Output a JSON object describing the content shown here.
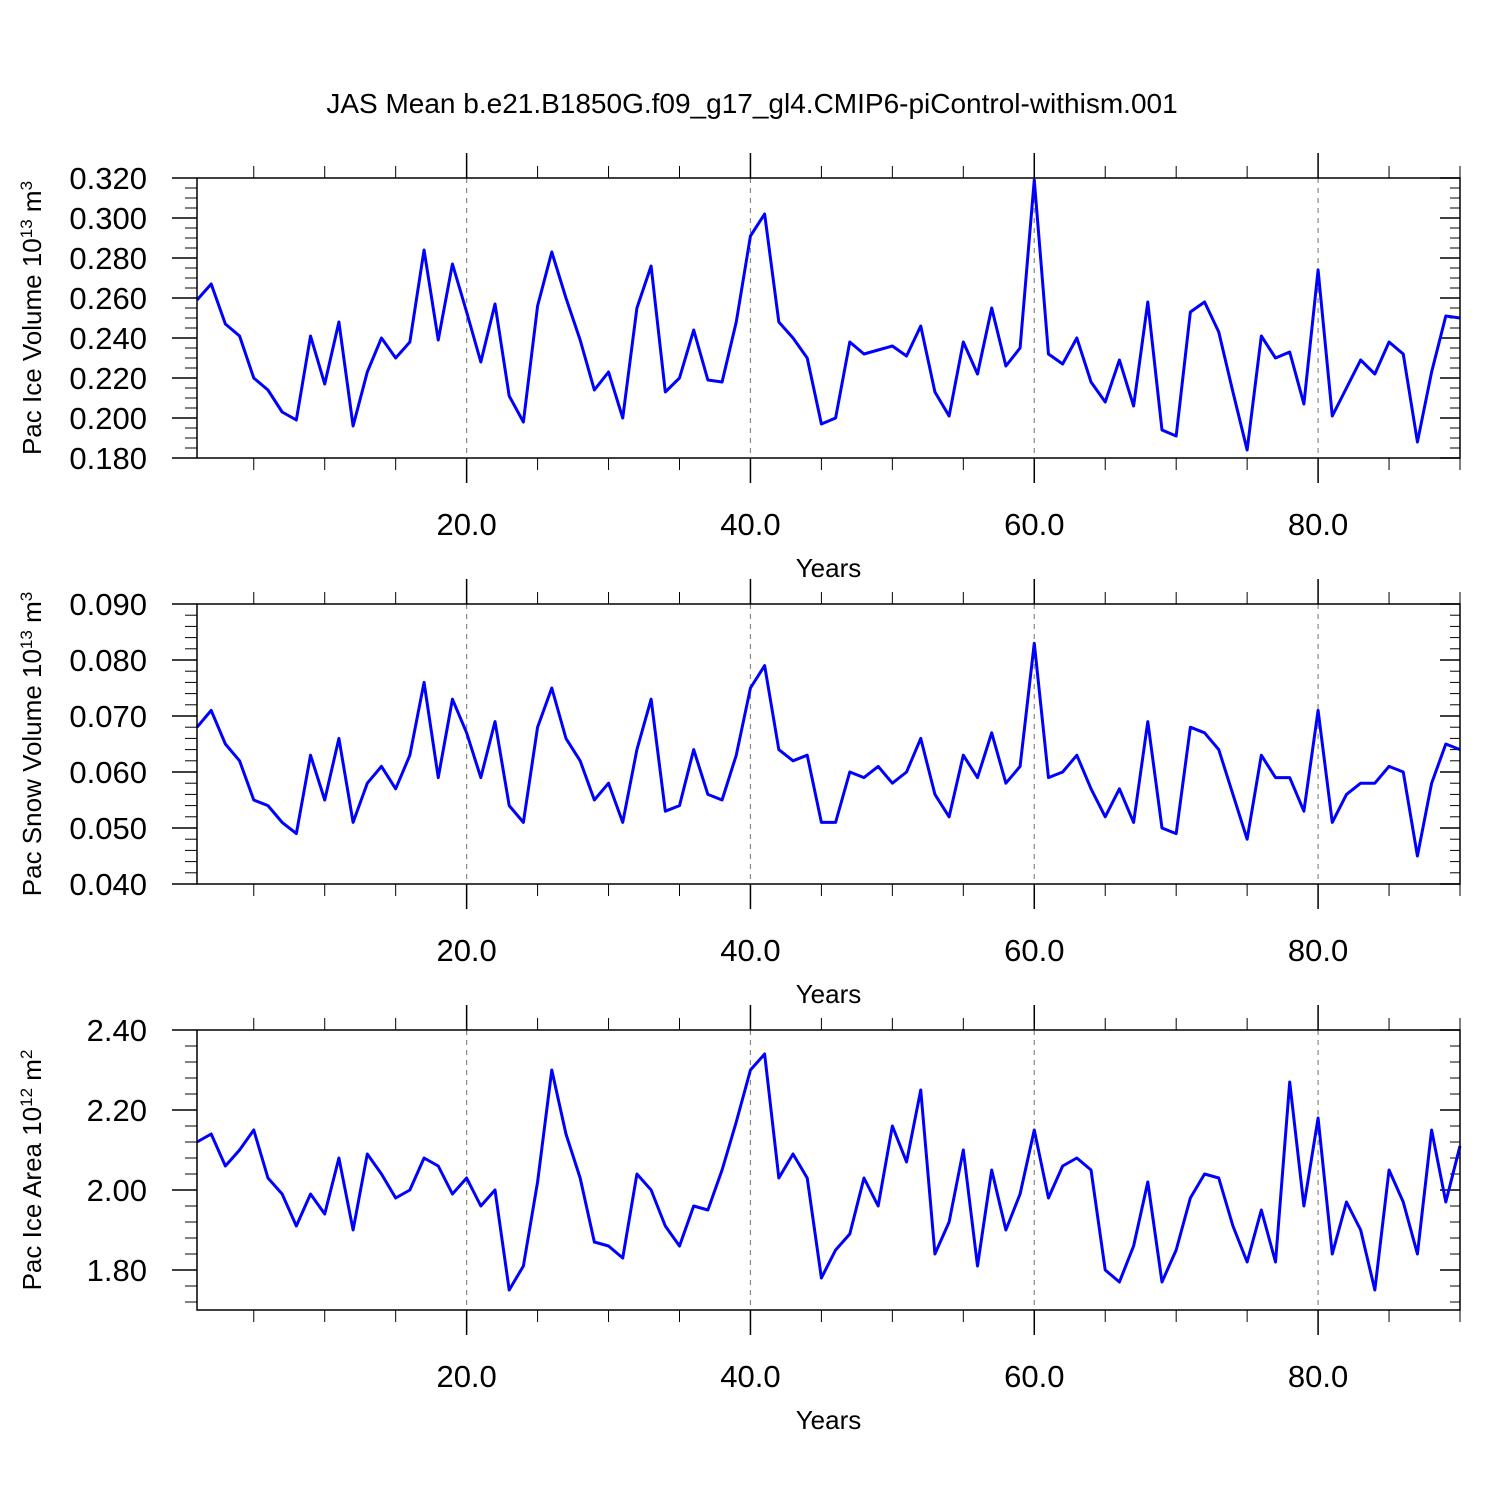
{
  "title": "JAS Mean b.e21.B1850G.f09_g17_gl4.CMIP6-piControl-withism.001",
  "chart_data": [
    {
      "type": "line",
      "ylabel": [
        {
          "text": "Pac Ice Volume 10"
        },
        {
          "text": "13",
          "sup": true
        },
        {
          "text": " m"
        },
        {
          "text": "3",
          "sup": true
        }
      ],
      "xlabel": "Years",
      "x": [
        1,
        2,
        3,
        4,
        5,
        6,
        7,
        8,
        9,
        10,
        11,
        12,
        13,
        14,
        15,
        16,
        17,
        18,
        19,
        20,
        21,
        22,
        23,
        24,
        25,
        26,
        27,
        28,
        29,
        30,
        31,
        32,
        33,
        34,
        35,
        36,
        37,
        38,
        39,
        40,
        41,
        42,
        43,
        44,
        45,
        46,
        47,
        48,
        49,
        50,
        51,
        52,
        53,
        54,
        55,
        56,
        57,
        58,
        59,
        60,
        61,
        62,
        63,
        64,
        65,
        66,
        67,
        68,
        69,
        70,
        71,
        72,
        73,
        74,
        75,
        76,
        77,
        78,
        79,
        80,
        81,
        82,
        83,
        84,
        85,
        86,
        87,
        88,
        89,
        90
      ],
      "series": [
        {
          "color": "#0000ff",
          "values": [
            0.259,
            0.267,
            0.247,
            0.241,
            0.22,
            0.214,
            0.203,
            0.199,
            0.241,
            0.217,
            0.248,
            0.196,
            0.223,
            0.24,
            0.23,
            0.238,
            0.284,
            0.239,
            0.277,
            0.253,
            0.228,
            0.257,
            0.211,
            0.198,
            0.256,
            0.283,
            0.26,
            0.239,
            0.214,
            0.223,
            0.2,
            0.255,
            0.276,
            0.213,
            0.22,
            0.244,
            0.219,
            0.218,
            0.248,
            0.291,
            0.302,
            0.248,
            0.24,
            0.23,
            0.197,
            0.2,
            0.238,
            0.232,
            0.234,
            0.236,
            0.231,
            0.246,
            0.213,
            0.201,
            0.238,
            0.222,
            0.255,
            0.226,
            0.235,
            0.319,
            0.232,
            0.227,
            0.24,
            0.218,
            0.208,
            0.229,
            0.206,
            0.258,
            0.194,
            0.191,
            0.253,
            0.258,
            0.243,
            0.213,
            0.184,
            0.241,
            0.23,
            0.233,
            0.207,
            0.274,
            0.201,
            0.215,
            0.229,
            0.222,
            0.238,
            0.232,
            0.188,
            0.223,
            0.251,
            0.25
          ]
        }
      ],
      "xlim": [
        1,
        90
      ],
      "xticks": [
        {
          "value": 20,
          "label": "20.0"
        },
        {
          "value": 40,
          "label": "40.0"
        },
        {
          "value": 60,
          "label": "60.0"
        },
        {
          "value": 80,
          "label": "80.0"
        }
      ],
      "xminorticks": [
        5,
        10,
        15,
        25,
        30,
        35,
        45,
        50,
        55,
        65,
        70,
        75,
        85,
        90
      ],
      "ylim": [
        0.18,
        0.32
      ],
      "yticks": [
        {
          "value": 0.18,
          "label": "0.180"
        },
        {
          "value": 0.2,
          "label": "0.200"
        },
        {
          "value": 0.22,
          "label": "0.220"
        },
        {
          "value": 0.24,
          "label": "0.240"
        },
        {
          "value": 0.26,
          "label": "0.260"
        },
        {
          "value": 0.28,
          "label": "0.280"
        },
        {
          "value": 0.3,
          "label": "0.300"
        },
        {
          "value": 0.32,
          "label": "0.320"
        }
      ],
      "yminorticks": [
        0.185,
        0.19,
        0.195,
        0.205,
        0.21,
        0.215,
        0.225,
        0.23,
        0.235,
        0.245,
        0.25,
        0.255,
        0.265,
        0.27,
        0.275,
        0.285,
        0.29,
        0.295,
        0.305,
        0.31,
        0.315
      ],
      "grid": true
    },
    {
      "type": "line",
      "ylabel": [
        {
          "text": "Pac Snow Volume 10"
        },
        {
          "text": "13",
          "sup": true
        },
        {
          "text": " m"
        },
        {
          "text": "3",
          "sup": true
        }
      ],
      "xlabel": "Years",
      "x": [
        1,
        2,
        3,
        4,
        5,
        6,
        7,
        8,
        9,
        10,
        11,
        12,
        13,
        14,
        15,
        16,
        17,
        18,
        19,
        20,
        21,
        22,
        23,
        24,
        25,
        26,
        27,
        28,
        29,
        30,
        31,
        32,
        33,
        34,
        35,
        36,
        37,
        38,
        39,
        40,
        41,
        42,
        43,
        44,
        45,
        46,
        47,
        48,
        49,
        50,
        51,
        52,
        53,
        54,
        55,
        56,
        57,
        58,
        59,
        60,
        61,
        62,
        63,
        64,
        65,
        66,
        67,
        68,
        69,
        70,
        71,
        72,
        73,
        74,
        75,
        76,
        77,
        78,
        79,
        80,
        81,
        82,
        83,
        84,
        85,
        86,
        87,
        88,
        89,
        90
      ],
      "series": [
        {
          "color": "#0000ff",
          "values": [
            0.068,
            0.071,
            0.065,
            0.062,
            0.055,
            0.054,
            0.051,
            0.049,
            0.063,
            0.055,
            0.066,
            0.051,
            0.058,
            0.061,
            0.057,
            0.063,
            0.076,
            0.059,
            0.073,
            0.067,
            0.059,
            0.069,
            0.054,
            0.051,
            0.068,
            0.075,
            0.066,
            0.062,
            0.055,
            0.058,
            0.051,
            0.064,
            0.073,
            0.053,
            0.054,
            0.064,
            0.056,
            0.055,
            0.063,
            0.075,
            0.079,
            0.064,
            0.062,
            0.063,
            0.051,
            0.051,
            0.06,
            0.059,
            0.061,
            0.058,
            0.06,
            0.066,
            0.056,
            0.052,
            0.063,
            0.059,
            0.067,
            0.058,
            0.061,
            0.083,
            0.059,
            0.06,
            0.063,
            0.057,
            0.052,
            0.057,
            0.051,
            0.069,
            0.05,
            0.049,
            0.068,
            0.067,
            0.064,
            0.056,
            0.048,
            0.063,
            0.059,
            0.059,
            0.053,
            0.071,
            0.051,
            0.056,
            0.058,
            0.058,
            0.061,
            0.06,
            0.045,
            0.058,
            0.065,
            0.064
          ]
        }
      ],
      "xlim": [
        1,
        90
      ],
      "xticks": [
        {
          "value": 20,
          "label": "20.0"
        },
        {
          "value": 40,
          "label": "40.0"
        },
        {
          "value": 60,
          "label": "60.0"
        },
        {
          "value": 80,
          "label": "80.0"
        }
      ],
      "xminorticks": [
        5,
        10,
        15,
        25,
        30,
        35,
        45,
        50,
        55,
        65,
        70,
        75,
        85,
        90
      ],
      "ylim": [
        0.04,
        0.09
      ],
      "yticks": [
        {
          "value": 0.04,
          "label": "0.040"
        },
        {
          "value": 0.05,
          "label": "0.050"
        },
        {
          "value": 0.06,
          "label": "0.060"
        },
        {
          "value": 0.07,
          "label": "0.070"
        },
        {
          "value": 0.08,
          "label": "0.080"
        },
        {
          "value": 0.09,
          "label": "0.090"
        }
      ],
      "yminorticks": [
        0.042,
        0.044,
        0.046,
        0.048,
        0.052,
        0.054,
        0.056,
        0.058,
        0.062,
        0.064,
        0.066,
        0.068,
        0.072,
        0.074,
        0.076,
        0.078,
        0.082,
        0.084,
        0.086,
        0.088
      ],
      "grid": true
    },
    {
      "type": "line",
      "ylabel": [
        {
          "text": "Pac Ice Area 10"
        },
        {
          "text": "12",
          "sup": true
        },
        {
          "text": " m"
        },
        {
          "text": "2",
          "sup": true
        }
      ],
      "xlabel": "Years",
      "x": [
        1,
        2,
        3,
        4,
        5,
        6,
        7,
        8,
        9,
        10,
        11,
        12,
        13,
        14,
        15,
        16,
        17,
        18,
        19,
        20,
        21,
        22,
        23,
        24,
        25,
        26,
        27,
        28,
        29,
        30,
        31,
        32,
        33,
        34,
        35,
        36,
        37,
        38,
        39,
        40,
        41,
        42,
        43,
        44,
        45,
        46,
        47,
        48,
        49,
        50,
        51,
        52,
        53,
        54,
        55,
        56,
        57,
        58,
        59,
        60,
        61,
        62,
        63,
        64,
        65,
        66,
        67,
        68,
        69,
        70,
        71,
        72,
        73,
        74,
        75,
        76,
        77,
        78,
        79,
        80,
        81,
        82,
        83,
        84,
        85,
        86,
        87,
        88,
        89,
        90
      ],
      "series": [
        {
          "color": "#0000ff",
          "values": [
            2.12,
            2.14,
            2.06,
            2.1,
            2.15,
            2.03,
            1.99,
            1.91,
            1.99,
            1.94,
            2.08,
            1.9,
            2.09,
            2.04,
            1.98,
            2.0,
            2.08,
            2.06,
            1.99,
            2.03,
            1.96,
            2.0,
            1.75,
            1.81,
            2.02,
            2.3,
            2.14,
            2.03,
            1.87,
            1.86,
            1.83,
            2.04,
            2.0,
            1.91,
            1.86,
            1.96,
            1.95,
            2.05,
            2.17,
            2.3,
            2.34,
            2.03,
            2.09,
            2.03,
            1.78,
            1.85,
            1.89,
            2.03,
            1.96,
            2.16,
            2.07,
            2.25,
            1.84,
            1.92,
            2.1,
            1.81,
            2.05,
            1.9,
            1.99,
            2.15,
            1.98,
            2.06,
            2.08,
            2.05,
            1.8,
            1.77,
            1.86,
            2.02,
            1.77,
            1.85,
            1.98,
            2.04,
            2.03,
            1.91,
            1.82,
            1.95,
            1.82,
            2.27,
            1.96,
            2.18,
            1.84,
            1.97,
            1.9,
            1.75,
            2.05,
            1.97,
            1.84,
            2.15,
            1.97,
            2.11
          ]
        }
      ],
      "xlim": [
        1,
        90
      ],
      "xticks": [
        {
          "value": 20,
          "label": "20.0"
        },
        {
          "value": 40,
          "label": "40.0"
        },
        {
          "value": 60,
          "label": "60.0"
        },
        {
          "value": 80,
          "label": "80.0"
        }
      ],
      "xminorticks": [
        5,
        10,
        15,
        25,
        30,
        35,
        45,
        50,
        55,
        65,
        70,
        75,
        85,
        90
      ],
      "ylim": [
        1.7,
        2.4
      ],
      "yticks": [
        {
          "value": 1.8,
          "label": "1.80"
        },
        {
          "value": 2,
          "label": "2.00"
        },
        {
          "value": 2.2,
          "label": "2.20"
        },
        {
          "value": 2.4,
          "label": "2.40"
        }
      ],
      "yminorticks": [
        1.72,
        1.76,
        1.84,
        1.88,
        1.92,
        1.96,
        2.04,
        2.08,
        2.12,
        2.16,
        2.24,
        2.28,
        2.32,
        2.36
      ],
      "grid": true
    }
  ]
}
